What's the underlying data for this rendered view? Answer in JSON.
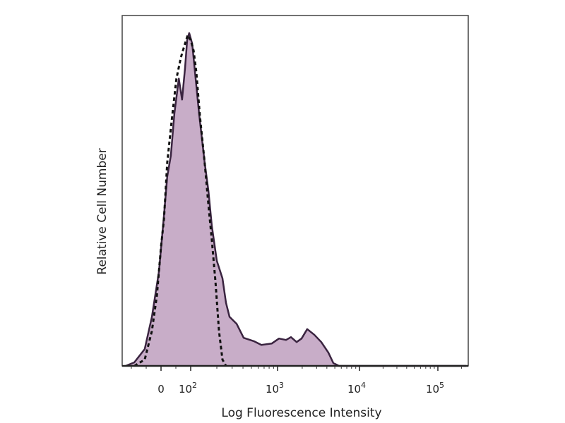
{
  "chart_data": {
    "type": "area",
    "title": "",
    "xlabel": "Log Fluorescence Intensity",
    "ylabel": "Relative Cell Number",
    "x_scale": "biexponential (linear near 0, log above 10^2)",
    "xlim": [
      -125,
      250000
    ],
    "ylim": [
      0,
      100
    ],
    "grid": false,
    "legend": "none",
    "x_ticks": [
      {
        "value": 0,
        "label": "0",
        "sup": ""
      },
      {
        "value": 100,
        "label": "10",
        "sup": "2"
      },
      {
        "value": 1000,
        "label": "10",
        "sup": "3"
      },
      {
        "value": 10000,
        "label": "10",
        "sup": "4"
      },
      {
        "value": 100000,
        "label": "10",
        "sup": "5"
      }
    ],
    "colors": {
      "fill": "#c8adc8",
      "line": "#3a2440",
      "dashed": "#111111",
      "axis": "#333333"
    },
    "series": [
      {
        "style": "filled-solid",
        "points": [
          [
            -119,
            0
          ],
          [
            -90,
            1.0
          ],
          [
            -55,
            4.8
          ],
          [
            -31,
            13.9
          ],
          [
            -7,
            27
          ],
          [
            10,
            43
          ],
          [
            21,
            54
          ],
          [
            33,
            60
          ],
          [
            45,
            72
          ],
          [
            60,
            82
          ],
          [
            71,
            76
          ],
          [
            81,
            85
          ],
          [
            88,
            93
          ],
          [
            95,
            95
          ],
          [
            104,
            92
          ],
          [
            114,
            82
          ],
          [
            125,
            72
          ],
          [
            145,
            58
          ],
          [
            160,
            50
          ],
          [
            175,
            40
          ],
          [
            200,
            30
          ],
          [
            232,
            25
          ],
          [
            255,
            18
          ],
          [
            280,
            14
          ],
          [
            338,
            12
          ],
          [
            407,
            8
          ],
          [
            540,
            7
          ],
          [
            651,
            6
          ],
          [
            860,
            6.4
          ],
          [
            1040,
            7.8
          ],
          [
            1269,
            7.4
          ],
          [
            1458,
            8.2
          ],
          [
            1709,
            6.8
          ],
          [
            1963,
            7.8
          ],
          [
            2300,
            10.5
          ],
          [
            2810,
            8.9
          ],
          [
            3420,
            6.8
          ],
          [
            4170,
            3.8
          ],
          [
            4800,
            0.8
          ],
          [
            5620,
            0
          ],
          [
            229000,
            0
          ]
        ]
      },
      {
        "style": "dashed",
        "points": [
          [
            -90,
            0
          ],
          [
            -55,
            1.8
          ],
          [
            -31,
            9.9
          ],
          [
            -14,
            20
          ],
          [
            0,
            34
          ],
          [
            10,
            42
          ],
          [
            21,
            58
          ],
          [
            36,
            70
          ],
          [
            52,
            82
          ],
          [
            67,
            88
          ],
          [
            81,
            92
          ],
          [
            90,
            94.4
          ],
          [
            100,
            93
          ],
          [
            108,
            90
          ],
          [
            116,
            84
          ],
          [
            128,
            71
          ],
          [
            145,
            58
          ],
          [
            160,
            46
          ],
          [
            175,
            36
          ],
          [
            193,
            24
          ],
          [
            212,
            9.9
          ],
          [
            232,
            1.8
          ],
          [
            255,
            0
          ]
        ]
      }
    ]
  }
}
